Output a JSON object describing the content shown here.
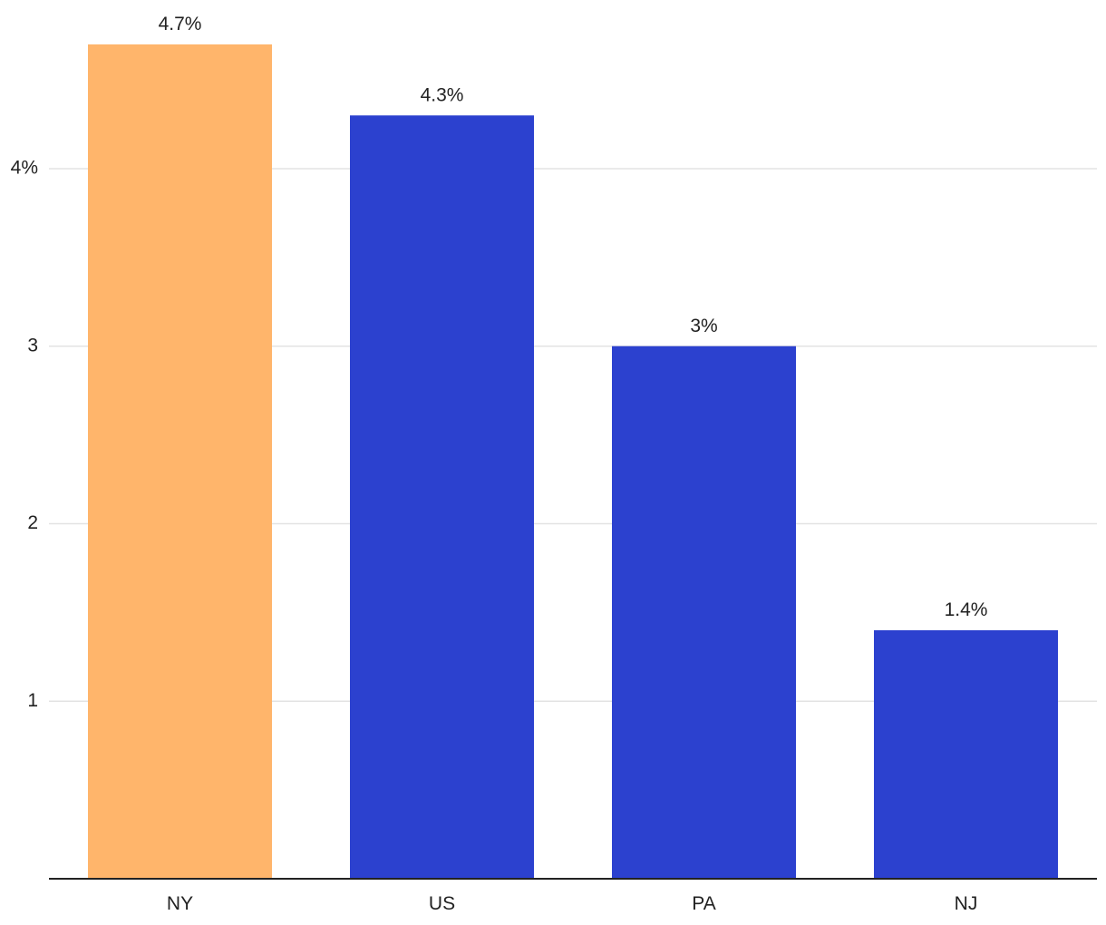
{
  "chart_data": {
    "type": "bar",
    "categories": [
      "NY",
      "US",
      "PA",
      "NJ"
    ],
    "values": [
      4.7,
      4.3,
      3.0,
      1.4
    ],
    "data_labels": [
      "4.7%",
      "4.3%",
      "3%",
      "1.4%"
    ],
    "bar_colors": [
      "#ffb56b",
      "#2c41cf",
      "#2c41cf",
      "#2c41cf"
    ],
    "highlight_color": "#ffb56b",
    "base_color": "#2c41cf",
    "yticks": [
      1,
      2,
      3,
      4
    ],
    "ytick_labels": [
      "1",
      "2",
      "3",
      "4%"
    ],
    "ylim": [
      0,
      4.9
    ],
    "grid": true,
    "title": "",
    "xlabel": "",
    "ylabel": ""
  }
}
